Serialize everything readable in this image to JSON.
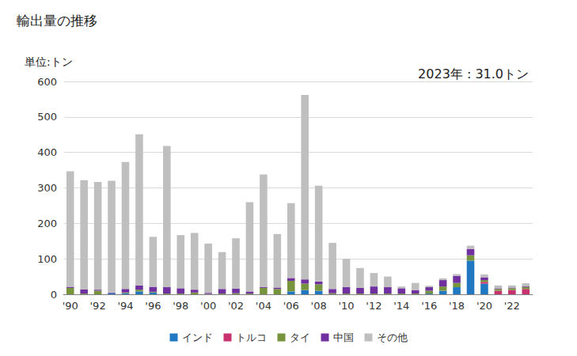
{
  "chart_data": {
    "type": "bar",
    "title": "輸出量の推移",
    "subtitle": "単位:トン",
    "annotation": "2023年 : 31.0トン",
    "categories": [
      "'90",
      null,
      "'92",
      null,
      "'94",
      null,
      "'96",
      null,
      "'98",
      null,
      "'00",
      null,
      "'02",
      null,
      "'04",
      null,
      "'06",
      null,
      "'08",
      null,
      "'10",
      null,
      "'12",
      null,
      "'14",
      null,
      "'16",
      null,
      "'18",
      null,
      "'20",
      null,
      "'22",
      null
    ],
    "series": [
      {
        "name": "インド",
        "color": "#1f78c1",
        "values": [
          0,
          0,
          0,
          3,
          3,
          8,
          5,
          0,
          0,
          0,
          0,
          0,
          0,
          0,
          0,
          0,
          8,
          12,
          10,
          0,
          0,
          0,
          0,
          0,
          0,
          0,
          2,
          10,
          20,
          95,
          30,
          0,
          0,
          0
        ]
      },
      {
        "name": "トルコ",
        "color": "#c8326e",
        "values": [
          0,
          0,
          0,
          0,
          0,
          0,
          0,
          0,
          0,
          0,
          0,
          0,
          0,
          0,
          0,
          0,
          0,
          0,
          0,
          0,
          0,
          0,
          0,
          0,
          0,
          0,
          0,
          0,
          0,
          0,
          5,
          10,
          12,
          15
        ]
      },
      {
        "name": "タイ",
        "color": "#77933c",
        "values": [
          18,
          2,
          10,
          0,
          2,
          5,
          2,
          2,
          2,
          5,
          1,
          2,
          3,
          2,
          18,
          15,
          30,
          18,
          18,
          3,
          2,
          2,
          2,
          2,
          2,
          2,
          8,
          12,
          12,
          15,
          5,
          5,
          5,
          5
        ]
      },
      {
        "name": "中国",
        "color": "#7030a0",
        "values": [
          3,
          12,
          3,
          2,
          10,
          12,
          14,
          18,
          15,
          8,
          3,
          13,
          13,
          6,
          2,
          4,
          8,
          12,
          8,
          12,
          18,
          16,
          20,
          18,
          15,
          10,
          10,
          18,
          20,
          18,
          8,
          2,
          2,
          2
        ]
      },
      {
        "name": "その他",
        "color": "#bfbfbf",
        "values": [
          326,
          308,
          304,
          315,
          358,
          426,
          141,
          398,
          150,
          160,
          139,
          104,
          142,
          252,
          318,
          151,
          211,
          520,
          270,
          130,
          80,
          56,
          38,
          30,
          5,
          20,
          4,
          5,
          5,
          9,
          8,
          8,
          6,
          9
        ]
      }
    ],
    "ylim": [
      0,
      600
    ],
    "yticks": [
      0,
      100,
      200,
      300,
      400,
      500,
      600
    ],
    "grid": true,
    "stacked": true,
    "legend": "bottom"
  }
}
